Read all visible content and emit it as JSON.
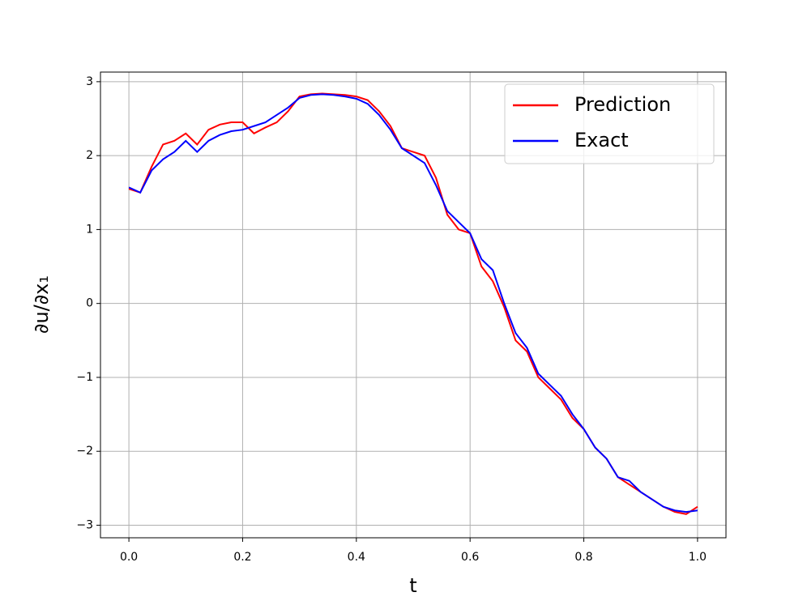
{
  "chart_data": {
    "type": "line",
    "xlabel": "t",
    "ylabel": "∂u/∂x₁",
    "x": [
      0,
      0.02,
      0.04,
      0.06,
      0.08,
      0.1,
      0.12,
      0.14,
      0.16,
      0.18,
      0.2,
      0.22,
      0.24,
      0.26,
      0.28,
      0.3,
      0.32,
      0.34,
      0.36,
      0.38,
      0.4,
      0.42,
      0.44,
      0.46,
      0.48,
      0.5,
      0.52,
      0.54,
      0.56,
      0.58,
      0.6,
      0.62,
      0.64,
      0.66,
      0.68,
      0.7,
      0.72,
      0.74,
      0.76,
      0.78,
      0.8,
      0.82,
      0.84,
      0.86,
      0.88,
      0.9,
      0.92,
      0.94,
      0.96,
      0.98,
      1
    ],
    "series": [
      {
        "name": "Prediction",
        "color": "#ff0000",
        "values": [
          1.55,
          1.5,
          1.85,
          2.15,
          2.2,
          2.3,
          2.15,
          2.35,
          2.42,
          2.45,
          2.45,
          2.3,
          2.38,
          2.45,
          2.6,
          2.8,
          2.83,
          2.84,
          2.83,
          2.82,
          2.8,
          2.75,
          2.6,
          2.4,
          2.1,
          2.05,
          2.0,
          1.7,
          1.2,
          1.0,
          0.95,
          0.5,
          0.3,
          -0.05,
          -0.5,
          -0.65,
          -1.0,
          -1.15,
          -1.3,
          -1.55,
          -1.7,
          -1.95,
          -2.1,
          -2.35,
          -2.45,
          -2.55,
          -2.65,
          -2.75,
          -2.82,
          -2.85,
          -2.75
        ]
      },
      {
        "name": "Exact",
        "color": "#0000ff",
        "values": [
          1.57,
          1.5,
          1.8,
          1.95,
          2.05,
          2.2,
          2.05,
          2.2,
          2.28,
          2.33,
          2.35,
          2.4,
          2.45,
          2.55,
          2.65,
          2.78,
          2.82,
          2.83,
          2.82,
          2.8,
          2.77,
          2.7,
          2.55,
          2.35,
          2.1,
          2.0,
          1.9,
          1.6,
          1.25,
          1.1,
          0.95,
          0.6,
          0.45,
          0.0,
          -0.4,
          -0.6,
          -0.95,
          -1.1,
          -1.25,
          -1.5,
          -1.7,
          -1.95,
          -2.1,
          -2.35,
          -2.4,
          -2.55,
          -2.65,
          -2.75,
          -2.8,
          -2.82,
          -2.8
        ]
      }
    ],
    "xlim": [
      -0.05,
      1.05
    ],
    "xticks": [
      {
        "value": 0,
        "label": "0.0"
      },
      0.2,
      0.4,
      0.6,
      0.8,
      {
        "value": 1,
        "label": "1.0"
      }
    ],
    "ylim": [
      -3.17,
      3.13
    ],
    "yticks": [
      {
        "value": -3,
        "label": "−3"
      },
      {
        "value": -2,
        "label": "−2"
      },
      {
        "value": -1,
        "label": "−1"
      },
      0,
      1,
      2,
      3
    ],
    "grid": true,
    "legend": "upper-right"
  }
}
